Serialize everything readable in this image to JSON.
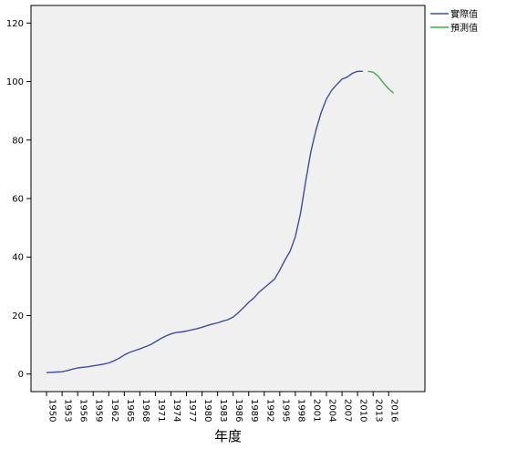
{
  "chart_data": {
    "type": "line",
    "title": "",
    "xlabel": "年度",
    "ylabel": "",
    "xlim": [
      1947,
      2023
    ],
    "ylim": [
      -6,
      126
    ],
    "grid": false,
    "legend_position": "top-right, outside plot",
    "x_ticks": [
      1950,
      1953,
      1956,
      1959,
      1962,
      1965,
      1968,
      1971,
      1974,
      1977,
      1980,
      1983,
      1986,
      1989,
      1992,
      1995,
      1998,
      2001,
      2004,
      2007,
      2010,
      2013,
      2016
    ],
    "y_ticks": [
      0,
      20,
      40,
      60,
      80,
      100,
      120
    ],
    "series": [
      {
        "name": "實際值",
        "color": "#3a4ea6",
        "points": [
          [
            1950,
            0.5
          ],
          [
            1951,
            0.6
          ],
          [
            1952,
            0.7
          ],
          [
            1953,
            0.8
          ],
          [
            1954,
            1.2
          ],
          [
            1955,
            1.7
          ],
          [
            1956,
            2.1
          ],
          [
            1957,
            2.3
          ],
          [
            1958,
            2.5
          ],
          [
            1959,
            2.8
          ],
          [
            1960,
            3.1
          ],
          [
            1961,
            3.4
          ],
          [
            1962,
            3.8
          ],
          [
            1963,
            4.5
          ],
          [
            1964,
            5.4
          ],
          [
            1965,
            6.5
          ],
          [
            1966,
            7.4
          ],
          [
            1967,
            8.0
          ],
          [
            1968,
            8.6
          ],
          [
            1969,
            9.3
          ],
          [
            1970,
            10.0
          ],
          [
            1971,
            11.0
          ],
          [
            1972,
            12.1
          ],
          [
            1973,
            13.0
          ],
          [
            1974,
            13.7
          ],
          [
            1975,
            14.2
          ],
          [
            1976,
            14.4
          ],
          [
            1977,
            14.7
          ],
          [
            1978,
            15.1
          ],
          [
            1979,
            15.5
          ],
          [
            1980,
            16.0
          ],
          [
            1981,
            16.6
          ],
          [
            1982,
            17.1
          ],
          [
            1983,
            17.5
          ],
          [
            1984,
            18.1
          ],
          [
            1985,
            18.6
          ],
          [
            1986,
            19.5
          ],
          [
            1987,
            21.0
          ],
          [
            1988,
            22.7
          ],
          [
            1989,
            24.5
          ],
          [
            1990,
            26.0
          ],
          [
            1991,
            28.0
          ],
          [
            1992,
            29.5
          ],
          [
            1993,
            31.0
          ],
          [
            1994,
            32.5
          ],
          [
            1995,
            35.5
          ],
          [
            1996,
            39.0
          ],
          [
            1997,
            42.0
          ],
          [
            1998,
            47.0
          ],
          [
            1999,
            55.0
          ],
          [
            2000,
            66.0
          ],
          [
            2001,
            76.0
          ],
          [
            2002,
            83.5
          ],
          [
            2003,
            89.5
          ],
          [
            2004,
            94.0
          ],
          [
            2005,
            97.0
          ],
          [
            2006,
            99.0
          ],
          [
            2007,
            100.8
          ],
          [
            2008,
            101.5
          ],
          [
            2009,
            102.8
          ],
          [
            2010,
            103.5
          ],
          [
            2011,
            103.5
          ]
        ]
      },
      {
        "name": "預測值",
        "color": "#3fae49",
        "points": [
          [
            2012,
            103.5
          ],
          [
            2013,
            103.2
          ],
          [
            2014,
            101.8
          ],
          [
            2015,
            99.5
          ],
          [
            2016,
            97.5
          ],
          [
            2017,
            96.0
          ]
        ]
      }
    ]
  }
}
